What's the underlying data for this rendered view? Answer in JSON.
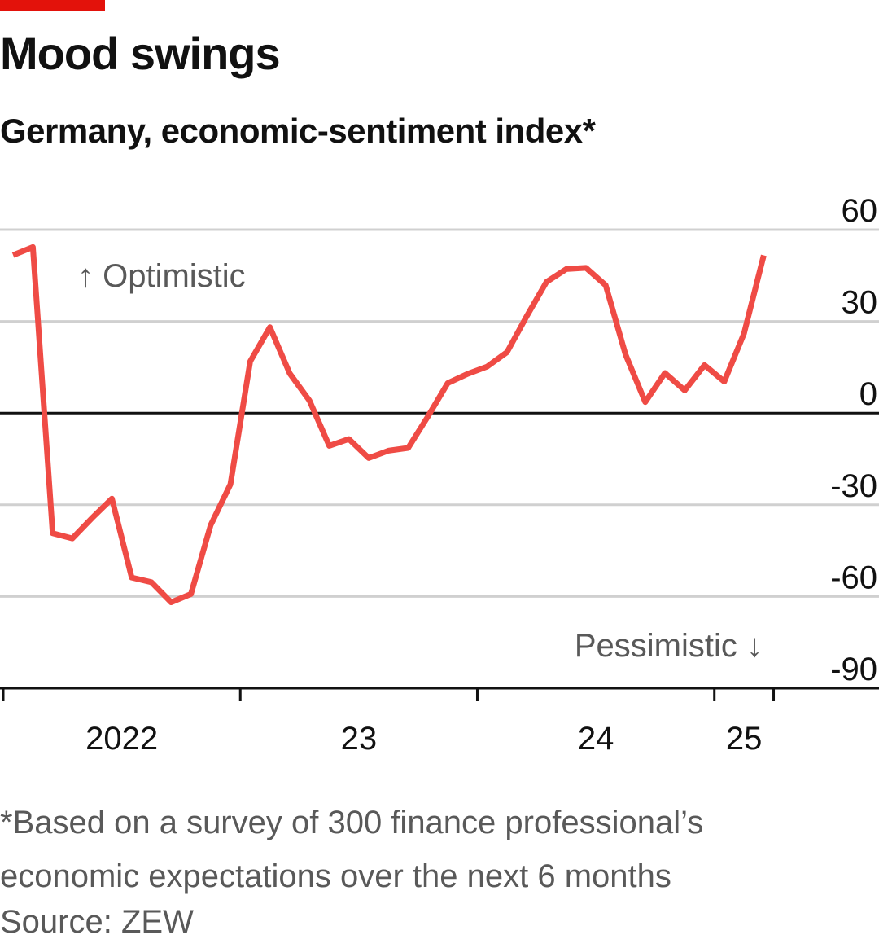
{
  "header": {
    "title": "Mood swings",
    "subtitle": "Germany, economic-sentiment index*"
  },
  "footer": {
    "note_line1": "*Based on a survey of 300 finance professional’s",
    "note_line2": "economic expectations over the next 6 months",
    "source": "Source: ZEW"
  },
  "colors": {
    "accent": "#e3120b",
    "line": "#ef4b45",
    "grid": "#d0d0d0",
    "zero": "#111111",
    "muted_text": "#595959"
  },
  "chart_data": {
    "type": "line",
    "title": "Mood swings",
    "subtitle": "Germany, economic-sentiment index*",
    "ylim": [
      -90,
      60
    ],
    "yticks": [
      60,
      30,
      0,
      -30,
      -60,
      -90
    ],
    "ytick_labels": [
      "60",
      "30",
      "0",
      "-30",
      "-60",
      "-90"
    ],
    "x_labels": [
      "2022",
      "23",
      "24",
      "25"
    ],
    "annotations": [
      "↑ Optimistic",
      "Pessimistic ↓"
    ],
    "grid": true,
    "series": [
      {
        "x": [
          "2022-01",
          "2022-02",
          "2022-03",
          "2022-04",
          "2022-05",
          "2022-06",
          "2022-07",
          "2022-08",
          "2022-09",
          "2022-10",
          "2022-11",
          "2022-12",
          "2023-01",
          "2023-02",
          "2023-03",
          "2023-04",
          "2023-05",
          "2023-06",
          "2023-07",
          "2023-08",
          "2023-09",
          "2023-10",
          "2023-11",
          "2023-12",
          "2024-01",
          "2024-02",
          "2024-03",
          "2024-04",
          "2024-05",
          "2024-06",
          "2024-07",
          "2024-08",
          "2024-09",
          "2024-10",
          "2024-11",
          "2024-12",
          "2025-01",
          "2025-02",
          "2025-03"
        ],
        "values": [
          51.7,
          54.3,
          -39.3,
          -41.0,
          -34.3,
          -28.0,
          -53.8,
          -55.3,
          -61.9,
          -59.2,
          -36.7,
          -23.3,
          16.9,
          28.1,
          13.0,
          4.1,
          -10.7,
          -8.5,
          -14.7,
          -12.3,
          -11.4,
          -1.1,
          9.8,
          12.8,
          15.2,
          19.9,
          31.7,
          42.9,
          47.1,
          47.5,
          41.8,
          19.2,
          3.6,
          13.1,
          7.4,
          15.7,
          10.3,
          26.0,
          51.6
        ]
      }
    ]
  }
}
